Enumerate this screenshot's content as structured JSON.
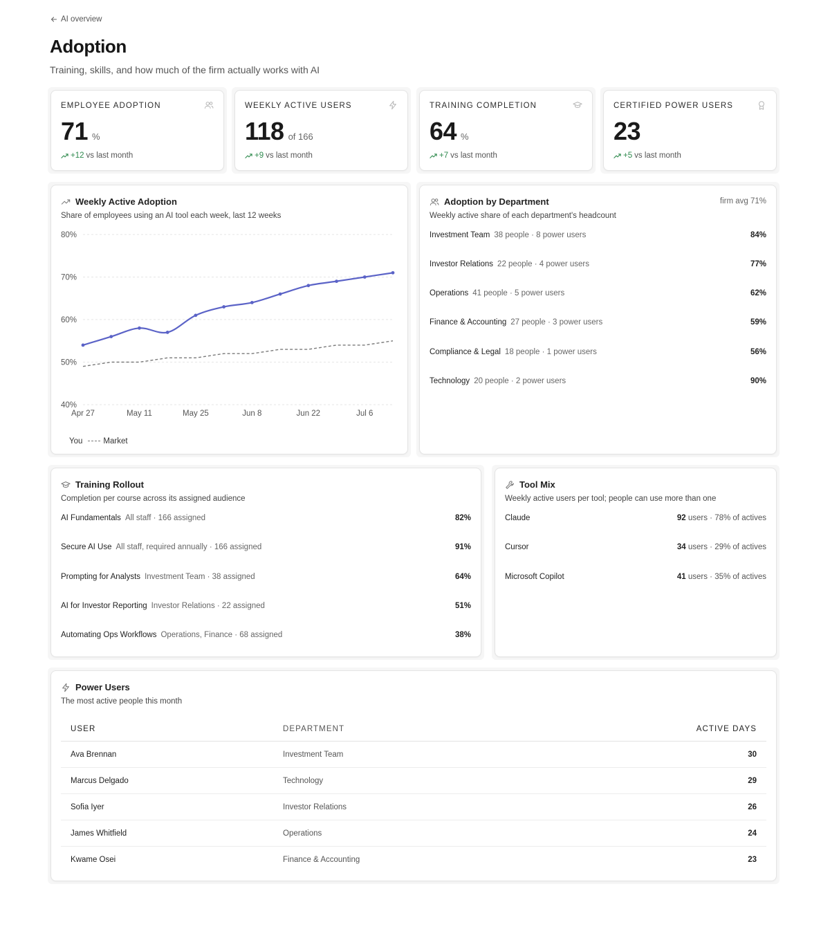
{
  "back_link": "AI overview",
  "title": "Adoption",
  "subtitle": "Training, skills, and how much of the firm actually works with AI",
  "kpis": [
    {
      "label": "EMPLOYEE ADOPTION",
      "value": "71",
      "unit": "%",
      "delta": "+12",
      "trend_text": "vs last month",
      "icon": "users-icon"
    },
    {
      "label": "WEEKLY ACTIVE USERS",
      "value": "118",
      "unit": "of 166",
      "delta": "+9",
      "trend_text": "vs last month",
      "icon": "bolt-icon"
    },
    {
      "label": "TRAINING COMPLETION",
      "value": "64",
      "unit": "%",
      "delta": "+7",
      "trend_text": "vs last month",
      "icon": "graduation-cap-icon"
    },
    {
      "label": "CERTIFIED POWER USERS",
      "value": "23",
      "unit": "",
      "delta": "+5",
      "trend_text": "vs last month",
      "icon": "award-icon"
    }
  ],
  "weekly": {
    "title": "Weekly Active Adoption",
    "subtitle": "Share of employees using an AI tool each week, last 12 weeks"
  },
  "chart_data": {
    "type": "line",
    "x": [
      "Apr 27",
      "May 4",
      "May 11",
      "May 18",
      "May 25",
      "Jun 1",
      "Jun 8",
      "Jun 15",
      "Jun 22",
      "Jun 29",
      "Jul 6",
      "Jul 13"
    ],
    "x_tick_labels": [
      "Apr 27",
      "May 11",
      "May 25",
      "Jun 8",
      "Jun 22",
      "Jul 6"
    ],
    "y_tick_labels": [
      "80%",
      "70%",
      "60%",
      "50%",
      "40%"
    ],
    "ylim": [
      40,
      80
    ],
    "grid": true,
    "series": [
      {
        "name": "You",
        "values": [
          54,
          56,
          58,
          57,
          61,
          63,
          64,
          66,
          68,
          69,
          70,
          71
        ],
        "color": "#5b63c7",
        "style": "solid"
      },
      {
        "name": "Market",
        "values": [
          49,
          50,
          50,
          51,
          51,
          52,
          52,
          53,
          53,
          54,
          54,
          55
        ],
        "color": "#7a7a7a",
        "style": "dashed"
      }
    ]
  },
  "departments": {
    "title": "Adoption by Department",
    "subtitle": "Weekly active share of each department's headcount",
    "aside": "firm avg 71%",
    "items": [
      {
        "name": "Investment Team",
        "meta": "38 people · 8 power users",
        "pct": "84%"
      },
      {
        "name": "Investor Relations",
        "meta": "22 people · 4 power users",
        "pct": "77%"
      },
      {
        "name": "Operations",
        "meta": "41 people · 5 power users",
        "pct": "62%"
      },
      {
        "name": "Finance & Accounting",
        "meta": "27 people · 3 power users",
        "pct": "59%"
      },
      {
        "name": "Compliance & Legal",
        "meta": "18 people · 1 power users",
        "pct": "56%"
      },
      {
        "name": "Technology",
        "meta": "20 people · 2 power users",
        "pct": "90%"
      }
    ]
  },
  "training": {
    "title": "Training Rollout",
    "subtitle": "Completion per course across its assigned audience",
    "items": [
      {
        "name": "AI Fundamentals",
        "meta": "All staff · 166 assigned",
        "pct": "82%"
      },
      {
        "name": "Secure AI Use",
        "meta": "All staff, required annually · 166 assigned",
        "pct": "91%"
      },
      {
        "name": "Prompting for Analysts",
        "meta": "Investment Team · 38 assigned",
        "pct": "64%"
      },
      {
        "name": "AI for Investor Reporting",
        "meta": "Investor Relations · 22 assigned",
        "pct": "51%"
      },
      {
        "name": "Automating Ops Workflows",
        "meta": "Operations, Finance · 68 assigned",
        "pct": "38%"
      }
    ]
  },
  "tools": {
    "title": "Tool Mix",
    "subtitle": "Weekly active users per tool; people can use more than one",
    "items": [
      {
        "name": "Claude",
        "users": "92",
        "detail": "users · 78% of actives"
      },
      {
        "name": "Cursor",
        "users": "34",
        "detail": "users · 29% of actives"
      },
      {
        "name": "Microsoft Copilot",
        "users": "41",
        "detail": "users · 35% of actives"
      }
    ]
  },
  "power_users": {
    "title": "Power Users",
    "subtitle": "The most active people this month",
    "columns": [
      "USER",
      "DEPARTMENT",
      "ACTIVE DAYS"
    ],
    "rows": [
      {
        "user": "Ava Brennan",
        "department": "Investment Team",
        "days": "30"
      },
      {
        "user": "Marcus Delgado",
        "department": "Technology",
        "days": "29"
      },
      {
        "user": "Sofia Iyer",
        "department": "Investor Relations",
        "days": "26"
      },
      {
        "user": "James Whitfield",
        "department": "Operations",
        "days": "24"
      },
      {
        "user": "Kwame Osei",
        "department": "Finance & Accounting",
        "days": "23"
      }
    ]
  }
}
